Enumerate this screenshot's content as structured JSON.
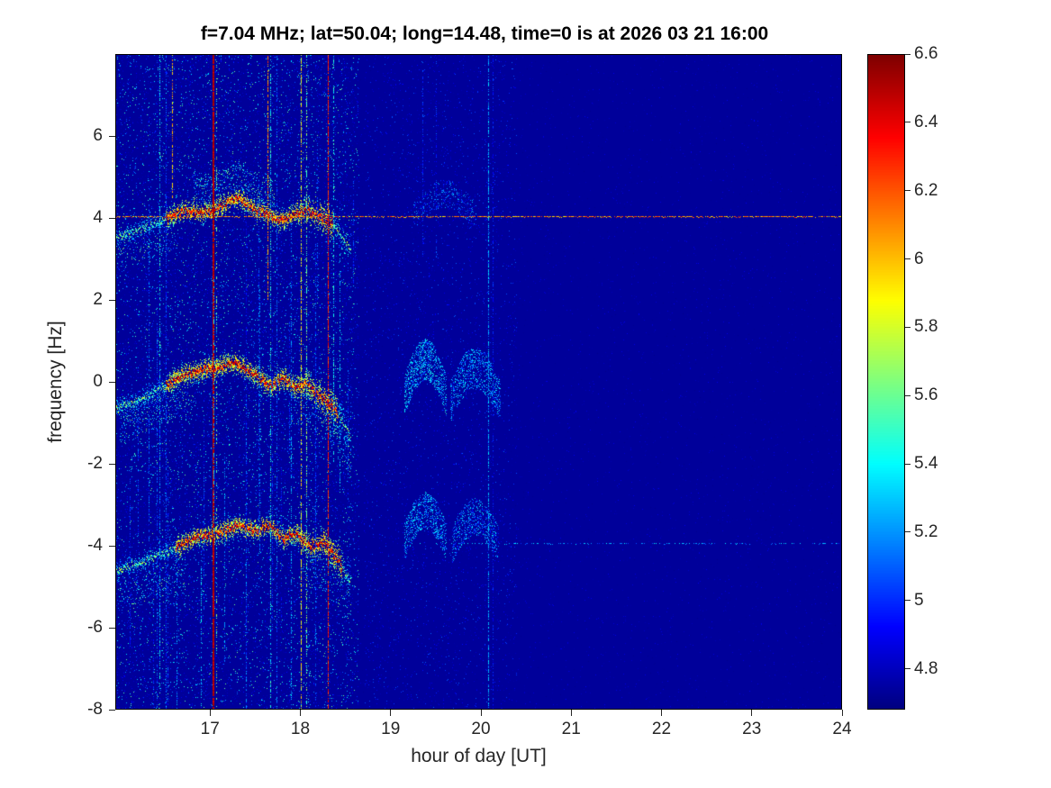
{
  "figure": {
    "title": "f=7.04 MHz;  lat=50.04; long=14.48, time=0 is at 2026 03 21 16:00",
    "xlabel": "hour of day [UT]",
    "ylabel": "frequency [Hz]"
  },
  "chart_data": {
    "type": "heatmap",
    "subtype": "doppler-spectrogram",
    "title": "f=7.04 MHz;  lat=50.04; long=14.48, time=0 is at 2026 03 21 16:00",
    "xlabel": "hour of day [UT]",
    "ylabel": "frequency [Hz]",
    "xlim": [
      15.95,
      24
    ],
    "ylim": [
      -8,
      8
    ],
    "xticks": [
      17,
      18,
      19,
      20,
      21,
      22,
      23,
      24
    ],
    "yticks": [
      -8,
      -6,
      -4,
      -2,
      0,
      2,
      4,
      6
    ],
    "grid": false,
    "colormap": "jet",
    "colorbar": {
      "min": 4.68,
      "max": 6.6,
      "ticks": [
        4.8,
        5,
        5.2,
        5.4,
        5.6,
        5.8,
        6,
        6.2,
        6.4,
        6.6
      ],
      "position": "right"
    },
    "background_value": 4.73,
    "traces": [
      {
        "name": "upper-doppler-trace",
        "t_range": [
          15.95,
          18.55
        ],
        "points": [
          [
            15.95,
            3.55
          ],
          [
            16.2,
            3.7
          ],
          [
            16.45,
            3.95
          ],
          [
            16.7,
            4.2
          ],
          [
            16.95,
            4.15
          ],
          [
            17.1,
            4.3
          ],
          [
            17.3,
            4.5
          ],
          [
            17.45,
            4.25
          ],
          [
            17.6,
            4.15
          ],
          [
            17.75,
            3.95
          ],
          [
            17.9,
            4.05
          ],
          [
            18.05,
            4.2
          ],
          [
            18.2,
            4.05
          ],
          [
            18.35,
            3.9
          ],
          [
            18.45,
            3.55
          ],
          [
            18.55,
            3.25
          ]
        ],
        "halo_sigma": 0.27,
        "halo_density": 9,
        "core_range": [
          16.5,
          18.35
        ],
        "spread_after": 17.9,
        "spread_rate": 0.5,
        "clouds": [
          {
            "t0": 16.8,
            "t1": 17.7,
            "height": 0.7,
            "dir": 1,
            "density": 4
          },
          {
            "t0": 15.95,
            "t1": 16.6,
            "height": 0.6,
            "dir": -1,
            "density": 2
          }
        ]
      },
      {
        "name": "center-doppler-trace",
        "t_range": [
          15.95,
          18.55
        ],
        "points": [
          [
            15.95,
            -0.65
          ],
          [
            16.2,
            -0.45
          ],
          [
            16.45,
            -0.15
          ],
          [
            16.7,
            0.15
          ],
          [
            16.9,
            0.3
          ],
          [
            17.1,
            0.35
          ],
          [
            17.25,
            0.5
          ],
          [
            17.4,
            0.3
          ],
          [
            17.55,
            0.1
          ],
          [
            17.65,
            -0.1
          ],
          [
            17.8,
            0.1
          ],
          [
            17.95,
            -0.15
          ],
          [
            18.05,
            0.0
          ],
          [
            18.2,
            -0.35
          ],
          [
            18.35,
            -0.6
          ],
          [
            18.45,
            -0.95
          ],
          [
            18.55,
            -1.35
          ]
        ],
        "halo_sigma": 0.3,
        "halo_density": 10,
        "core_range": [
          16.5,
          18.4
        ],
        "spread_after": 17.9,
        "spread_rate": 0.5,
        "clouds": [
          {
            "t0": 16.0,
            "t1": 16.8,
            "height": 0.7,
            "dir": -1,
            "density": 3
          },
          {
            "t0": 17.9,
            "t1": 18.55,
            "height": 0.8,
            "dir": -1,
            "density": 3
          }
        ]
      },
      {
        "name": "lower-doppler-trace",
        "t_range": [
          15.95,
          18.55
        ],
        "points": [
          [
            15.95,
            -4.6
          ],
          [
            16.2,
            -4.45
          ],
          [
            16.45,
            -4.2
          ],
          [
            16.7,
            -3.95
          ],
          [
            16.9,
            -3.75
          ],
          [
            17.1,
            -3.7
          ],
          [
            17.3,
            -3.5
          ],
          [
            17.5,
            -3.65
          ],
          [
            17.65,
            -3.5
          ],
          [
            17.8,
            -3.85
          ],
          [
            17.95,
            -3.7
          ],
          [
            18.1,
            -4.05
          ],
          [
            18.25,
            -3.9
          ],
          [
            18.4,
            -4.35
          ],
          [
            18.55,
            -4.9
          ]
        ],
        "halo_sigma": 0.28,
        "halo_density": 9,
        "core_range": [
          16.6,
          18.45
        ],
        "spread_after": 18.0,
        "spread_rate": 0.55,
        "clouds": [
          {
            "t0": 15.95,
            "t1": 16.7,
            "height": 0.9,
            "dir": -1,
            "density": 3
          },
          {
            "t0": 18.0,
            "t1": 18.55,
            "height": 0.9,
            "dir": -1,
            "density": 3
          }
        ]
      }
    ],
    "horizontal_lines": [
      {
        "f": 4.05,
        "t_range": [
          15.95,
          24
        ],
        "value": 6.1,
        "density": 0.8,
        "jitter": 0.5
      },
      {
        "f": -3.95,
        "t_range": [
          19.3,
          24
        ],
        "value": 5.2,
        "density": 0.3,
        "jitter": 0.4
      }
    ],
    "vertical_lines": [
      {
        "t": 16.43,
        "f_range": [
          -8,
          8
        ],
        "value": 5.35,
        "width": 1,
        "density": 0.5,
        "jitter": 0.5
      },
      {
        "t": 16.5,
        "f_range": [
          -8,
          8
        ],
        "value": 5.05,
        "width": 1,
        "density": 0.45,
        "jitter": 0.3
      },
      {
        "t": 16.57,
        "f_range": [
          4.5,
          8
        ],
        "value": 6.0,
        "width": 1,
        "density": 0.6,
        "jitter": 0.4
      },
      {
        "t": 16.62,
        "f_range": [
          -8,
          -4
        ],
        "value": 5.2,
        "width": 1,
        "density": 0.35,
        "jitter": 0.3
      },
      {
        "t": 17.02,
        "f_range": [
          -8,
          8
        ],
        "value": 6.5,
        "width": 2,
        "density": 0.97,
        "jitter": 0.15
      },
      {
        "t": 17.06,
        "f_range": [
          -8,
          8
        ],
        "value": 5.6,
        "width": 1,
        "density": 0.3,
        "jitter": 0.4
      },
      {
        "t": 17.63,
        "f_range": [
          2,
          8
        ],
        "value": 6.1,
        "width": 1,
        "density": 0.6,
        "jitter": 0.4
      },
      {
        "t": 17.66,
        "f_range": [
          -8,
          8
        ],
        "value": 5.4,
        "width": 1,
        "density": 0.45,
        "jitter": 0.4
      },
      {
        "t": 17.73,
        "f_range": [
          -8,
          8
        ],
        "value": 5.1,
        "width": 1,
        "density": 0.4,
        "jitter": 0.3
      },
      {
        "t": 18.0,
        "f_range": [
          -8,
          8
        ],
        "value": 5.9,
        "width": 1,
        "density": 0.6,
        "jitter": 0.4
      },
      {
        "t": 18.06,
        "f_range": [
          -8,
          8
        ],
        "value": 5.6,
        "width": 1,
        "density": 0.45,
        "jitter": 0.4
      },
      {
        "t": 18.3,
        "f_range": [
          -8,
          8
        ],
        "value": 6.3,
        "width": 1,
        "density": 0.75,
        "jitter": 0.3
      },
      {
        "t": 18.36,
        "f_range": [
          -2,
          8
        ],
        "value": 5.4,
        "width": 1,
        "density": 0.4,
        "jitter": 0.3
      },
      {
        "t": 19.35,
        "f_range": [
          3,
          8
        ],
        "value": 5.0,
        "width": 1,
        "density": 0.3,
        "jitter": 0.25
      },
      {
        "t": 19.5,
        "f_range": [
          3,
          8
        ],
        "value": 5.0,
        "width": 1,
        "density": 0.25,
        "jitter": 0.25
      },
      {
        "t": 20.08,
        "f_range": [
          -8,
          8
        ],
        "value": 5.25,
        "width": 1,
        "density": 0.6,
        "jitter": 0.3
      },
      {
        "t": 20.13,
        "f_range": [
          -8,
          8
        ],
        "value": 4.95,
        "width": 1,
        "density": 0.35,
        "jitter": 0.25
      }
    ],
    "faint_verticals": {
      "count": 26,
      "t_range": [
        16.02,
        18.6
      ],
      "value_range": [
        4.9,
        5.35
      ]
    },
    "blobs": [
      {
        "t_range": [
          19.15,
          19.62
        ],
        "f_center": 0.15,
        "arc_height": 0.9,
        "thickness": 1.0,
        "dots": 900,
        "value": 5.25
      },
      {
        "t_range": [
          19.66,
          20.22
        ],
        "f_center": 0.0,
        "arc_height": 0.85,
        "thickness": 1.0,
        "dots": 800,
        "value": 5.2
      },
      {
        "t_range": [
          19.15,
          19.62
        ],
        "f_center": -3.45,
        "arc_height": 0.75,
        "thickness": 0.9,
        "dots": 700,
        "value": 5.2
      },
      {
        "t_range": [
          19.68,
          20.2
        ],
        "f_center": -3.55,
        "arc_height": 0.7,
        "thickness": 0.9,
        "dots": 600,
        "value": 5.15
      },
      {
        "t_range": [
          19.25,
          19.95
        ],
        "f_center": 4.35,
        "arc_height": 0.6,
        "thickness": 0.7,
        "dots": 350,
        "value": 5.05
      }
    ],
    "noise": {
      "left": {
        "dots": 15000,
        "t_max": 18.65,
        "v_base": 4.78,
        "v_pow": 2.5,
        "v_span": 0.85
      },
      "mid": {
        "dots": 2500,
        "t_min": 18.7,
        "t_max": 20.4,
        "v_base": 4.76,
        "v_span": 0.35
      },
      "global": {
        "dots": 9000,
        "v_base": 4.7,
        "v_span": 0.18
      }
    }
  }
}
